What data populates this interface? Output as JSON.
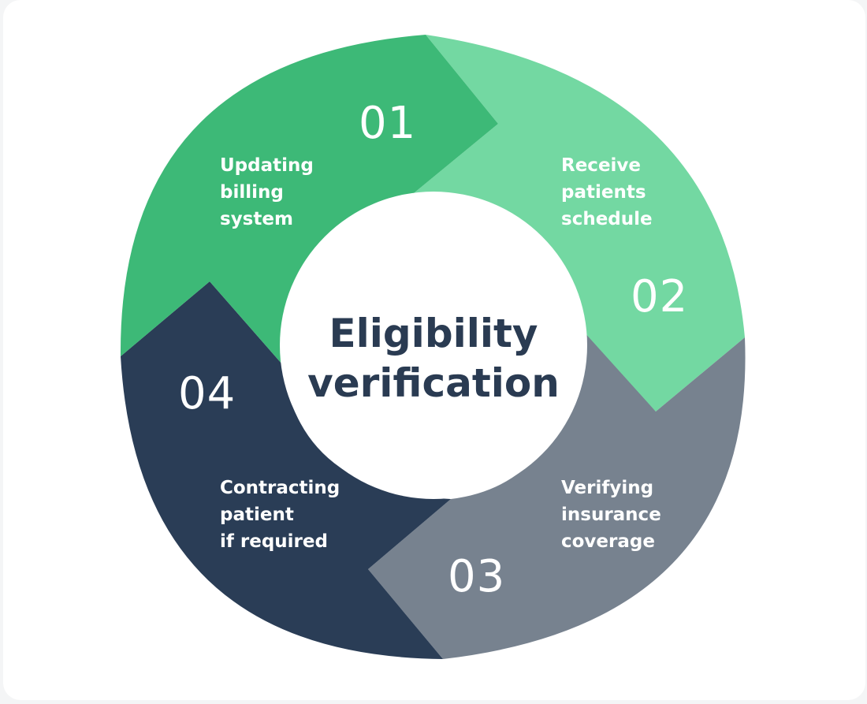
{
  "center": {
    "title_line1": "Eligibility",
    "title_line2": "verification"
  },
  "steps": [
    {
      "number": "01",
      "label_lines": [
        "Updating",
        "billing",
        "system"
      ],
      "color": "#3db977"
    },
    {
      "number": "02",
      "label_lines": [
        "Receive",
        "patients",
        "schedule"
      ],
      "color": "#73d8a2"
    },
    {
      "number": "03",
      "label_lines": [
        "Verifying",
        "insurance",
        "coverage"
      ],
      "color": "#77828f"
    },
    {
      "number": "04",
      "label_lines": [
        "Contracting",
        "patient",
        "if required"
      ],
      "color": "#2a3d56"
    }
  ]
}
